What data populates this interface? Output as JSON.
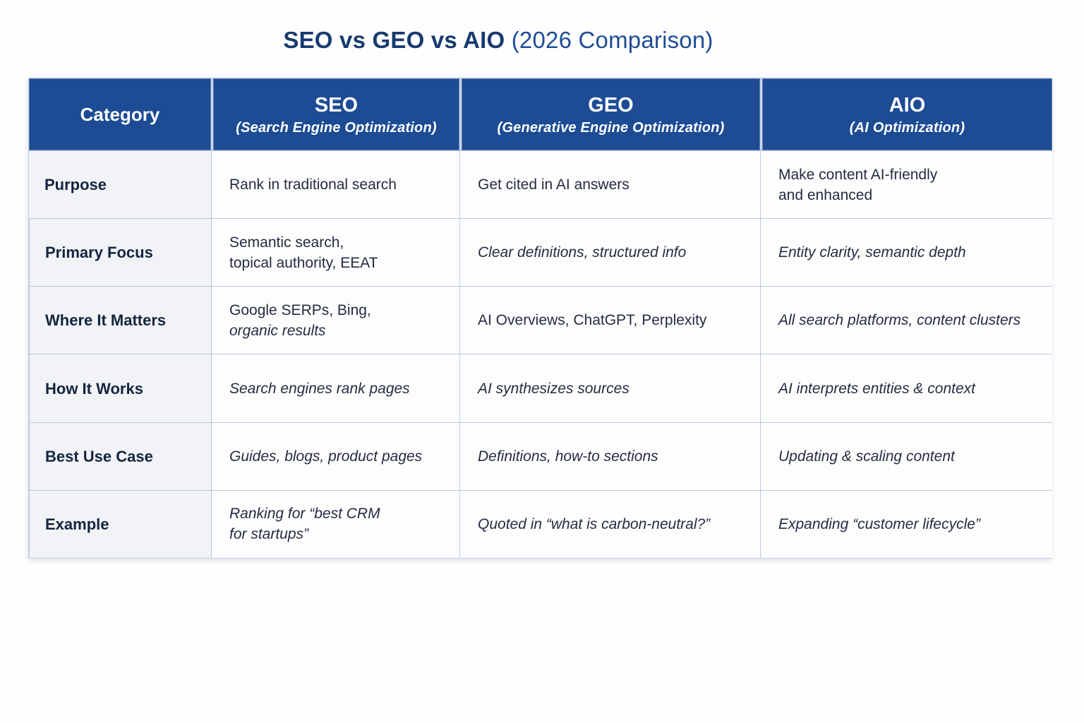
{
  "page_title": {
    "bold": "SEO vs GEO vs AIO",
    "regular": " (2026 Comparison)"
  },
  "colors": {
    "header_bg": "#1d4c94",
    "title_navy": "#173a6f",
    "title_blue": "#1f4d95",
    "label_cell_bg": "#f1f3f6",
    "cell_border": "#bcc9dd",
    "body_text": "#242c3e",
    "label_text": "#15243f"
  },
  "table": {
    "columns": [
      {
        "title": "Category",
        "subtitle": ""
      },
      {
        "title": "SEO",
        "subtitle": "(Search Engine Optimization)"
      },
      {
        "title": "GEO",
        "subtitle": "(Generative Engine Optimization)"
      },
      {
        "title": "AIO",
        "subtitle": "(AI Optimization)"
      }
    ],
    "rows": [
      {
        "label": "Purpose",
        "seo": {
          "line1": "Rank in traditional search",
          "line2": ""
        },
        "geo": {
          "line1": "Get cited in AI answers",
          "line2": ""
        },
        "aio": {
          "line1": "Make content AI-friendly",
          "line2": "and enhanced"
        }
      },
      {
        "label": "Primary Focus",
        "seo": {
          "line1": "Semantic search,",
          "line2": "topical authority, EEAT"
        },
        "geo": {
          "line1": "Clear definitions, structured info",
          "line2": ""
        },
        "aio": {
          "line1": "Entity clarity, semantic depth",
          "line2": ""
        }
      },
      {
        "label": "Where It Matters",
        "seo": {
          "line1": "Google SERPs, Bing,",
          "line2": "organic results"
        },
        "geo": {
          "line1": "AI Overviews, ChatGPT, Perplexity",
          "line2": ""
        },
        "aio": {
          "line1": "All search platforms, content clusters",
          "line2": ""
        }
      },
      {
        "label": "How It Works",
        "seo": {
          "line1": "Search engines rank pages",
          "line2": ""
        },
        "geo": {
          "line1": "AI synthesizes sources",
          "line2": ""
        },
        "aio": {
          "line1": "AI interprets entities & context",
          "line2": ""
        }
      },
      {
        "label": "Best Use Case",
        "seo": {
          "line1": "Guides, blogs, product pages",
          "line2": ""
        },
        "geo": {
          "line1": "Definitions, how-to sections",
          "line2": ""
        },
        "aio": {
          "line1": "Updating & scaling content",
          "line2": ""
        }
      },
      {
        "label": "Example",
        "seo": {
          "line1": "Ranking for “best CRM",
          "line2": "for startups”"
        },
        "geo": {
          "line1": "Quoted in “what is carbon-neutral?”",
          "line2": ""
        },
        "aio": {
          "line1": "Expanding “customer lifecycle”",
          "line2": ""
        }
      }
    ]
  },
  "chart_data": {
    "type": "table",
    "title": "SEO vs GEO vs AIO (2026 Comparison)",
    "columns": [
      "Category",
      "SEO (Search Engine Optimization)",
      "GEO (Generative Engine Optimization)",
      "AIO (AI Optimization)"
    ],
    "rows": [
      [
        "Purpose",
        "Rank in traditional search",
        "Get cited in AI answers",
        "Make content AI-friendly and enhanced"
      ],
      [
        "Primary Focus",
        "Semantic search, topical authority, EEAT",
        "Clear definitions, structured info",
        "Entity clarity, semantic depth"
      ],
      [
        "Where It Matters",
        "Google SERPs, Bing, organic results",
        "AI Overviews, ChatGPT, Perplexity",
        "All search platforms, content clusters"
      ],
      [
        "How It Works",
        "Search engines rank pages",
        "AI synthesizes sources",
        "AI interprets entities & context"
      ],
      [
        "Best Use Case",
        "Guides, blogs, product pages",
        "Definitions, how-to sections",
        "Updating & scaling content"
      ],
      [
        "Example",
        "Ranking for “best CRM for startups”",
        "Quoted in “what is carbon-neutral?”",
        "Expanding “customer lifecycle”"
      ]
    ],
    "layout": {
      "header_row": true,
      "first_column_is_label": true,
      "grid": true
    }
  }
}
